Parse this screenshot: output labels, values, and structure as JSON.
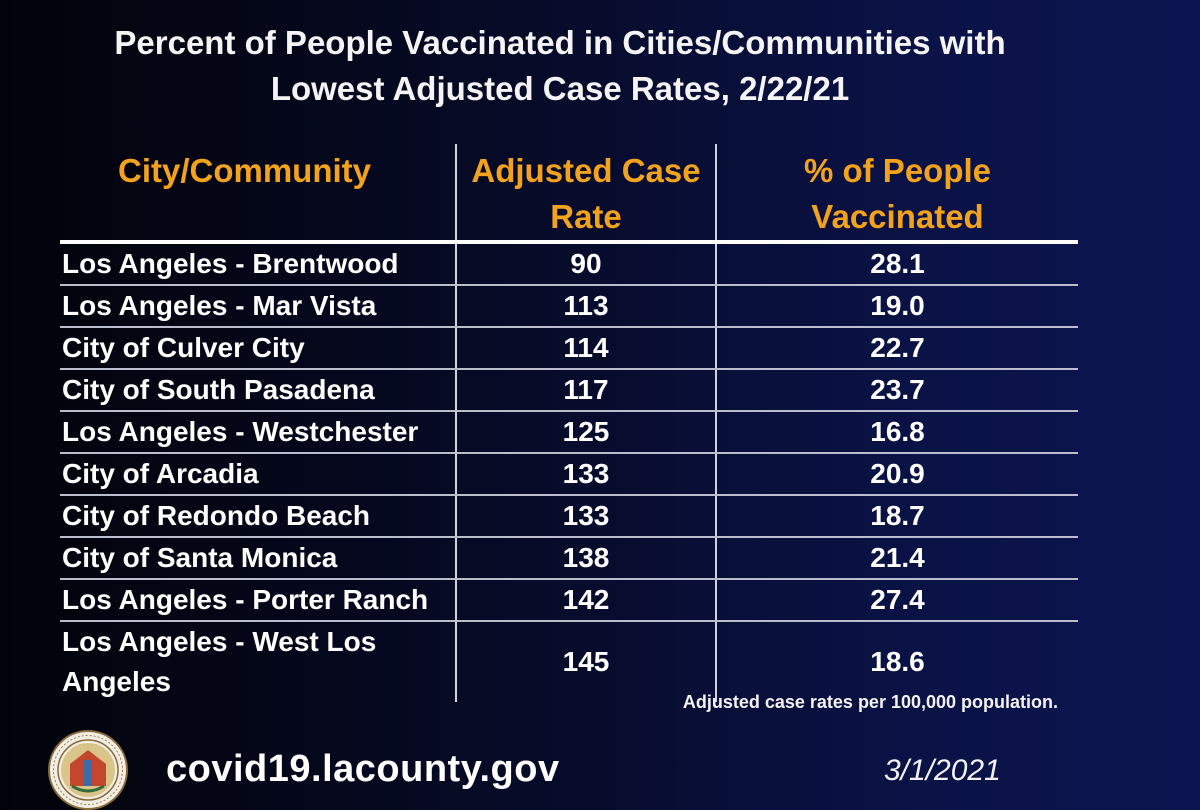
{
  "title": {
    "line1": "Percent of People Vaccinated in Cities/Communities with",
    "line2": "Lowest Adjusted Case Rates, 2/22/21"
  },
  "table": {
    "headers": {
      "community": "City/Community",
      "rate_line1": "Adjusted Case",
      "rate_line2": "Rate",
      "vacc_line1": "% of People",
      "vacc_line2": "Vaccinated"
    },
    "rows": [
      {
        "name": "Los Angeles - Brentwood",
        "rate": "90",
        "vacc": "28.1"
      },
      {
        "name": "Los Angeles - Mar Vista",
        "rate": "113",
        "vacc": "19.0"
      },
      {
        "name": "City of Culver City",
        "rate": "114",
        "vacc": "22.7"
      },
      {
        "name": "City of South Pasadena",
        "rate": "117",
        "vacc": "23.7"
      },
      {
        "name": "Los Angeles - Westchester",
        "rate": "125",
        "vacc": "16.8"
      },
      {
        "name": "City of Arcadia",
        "rate": "133",
        "vacc": "20.9"
      },
      {
        "name": "City of Redondo Beach",
        "rate": "133",
        "vacc": "18.7"
      },
      {
        "name": "City of Santa Monica",
        "rate": "138",
        "vacc": "21.4"
      },
      {
        "name": "Los Angeles - Porter Ranch",
        "rate": "142",
        "vacc": "27.4"
      },
      {
        "name": "Los Angeles - West Los Angeles",
        "rate": "145",
        "vacc": "18.6"
      }
    ],
    "note": "Adjusted case rates per 100,000 population."
  },
  "footer": {
    "url": "covid19.lacounty.gov",
    "date": "3/1/2021"
  },
  "colors": {
    "header_accent": "#f3a21c",
    "background": "#060a24"
  }
}
